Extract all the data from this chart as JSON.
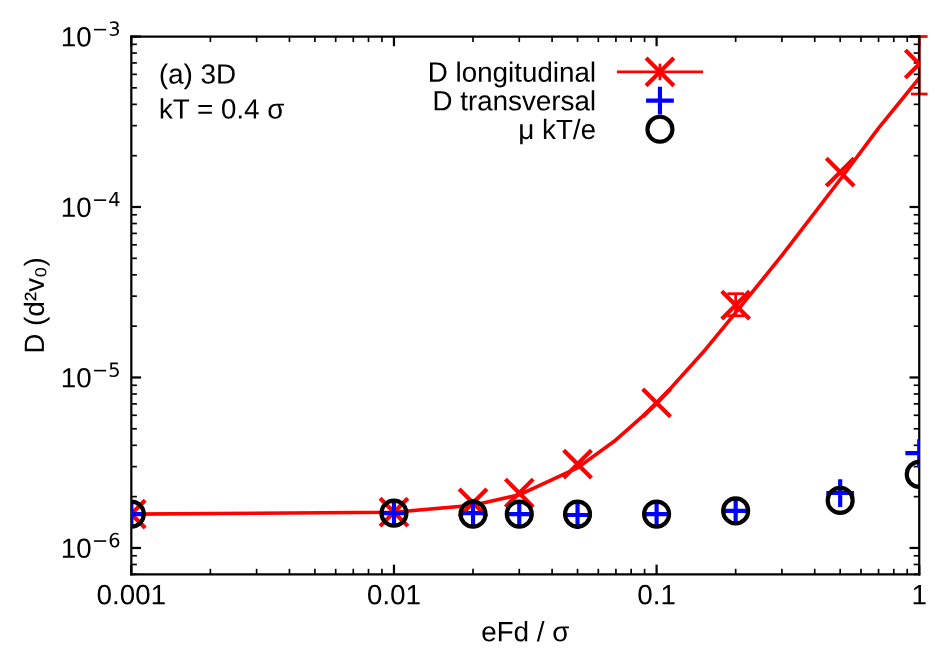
{
  "chart_data": {
    "type": "scatter",
    "xlabel": "eFd / σ",
    "ylabel": "D (d²v₀)",
    "log": "xy",
    "xlim": [
      0.001,
      1
    ],
    "ylim": [
      7e-07,
      0.001
    ],
    "xticks": [
      0.001,
      0.01,
      0.1,
      1
    ],
    "yticks": [
      {
        "value": 1e-06,
        "label": "10$^{−6}$"
      },
      {
        "value": 1e-05,
        "label": "10$^{−5}$"
      },
      {
        "value": 0.0001,
        "label": "10$^{−4}$"
      },
      {
        "value": 0.001,
        "label": "10$^{−3}$"
      }
    ],
    "x": [
      0.001,
      0.01,
      0.02,
      0.03,
      0.05,
      0.1,
      0.2,
      0.5,
      1
    ],
    "legend": "top",
    "grid": false,
    "annotations": [
      "(a) 3D",
      "kT = 0.4 σ"
    ],
    "series": [
      {
        "name": "D longitudinal",
        "color": "#ff0000",
        "marker": "cross",
        "values": [
          1.58e-06,
          1.62e-06,
          1.84e-06,
          2.1e-06,
          3.1e-06,
          7.1e-06,
          2.66e-05,
          0.00016,
          0.00069
        ],
        "errors": [
          null,
          null,
          null,
          null,
          null,
          null,
          [
            2.3e-05,
            3.1e-05
          ],
          null,
          [
            0.00046,
            0.001
          ]
        ]
      },
      {
        "name": "D transversal",
        "color": "#0000ff",
        "marker": "plus",
        "values": [
          1.58e-06,
          1.6e-06,
          1.6e-06,
          1.58e-06,
          1.56e-06,
          1.58e-06,
          1.65e-06,
          2.1e-06,
          3.6e-06
        ]
      },
      {
        "name": "μ kT/e",
        "color": "#000000",
        "marker": "circle",
        "values": [
          1.58e-06,
          1.6e-06,
          1.58e-06,
          1.58e-06,
          1.58e-06,
          1.58e-06,
          1.65e-06,
          1.9e-06,
          2.7e-06
        ]
      },
      {
        "type": "line",
        "color": "#ff0000",
        "line_style": "solid",
        "x": [
          0.001,
          0.01,
          0.02,
          0.03,
          0.05,
          0.07,
          0.1,
          0.15,
          0.2,
          0.3,
          0.5,
          0.7,
          1
        ],
        "values": [
          1.58e-06,
          1.62e-06,
          1.78e-06,
          2.05e-06,
          2.95e-06,
          4.3e-06,
          7e-06,
          1.4e-05,
          2.4e-05,
          5.2e-05,
          0.000145,
          0.00029,
          0.00057
        ]
      }
    ]
  }
}
